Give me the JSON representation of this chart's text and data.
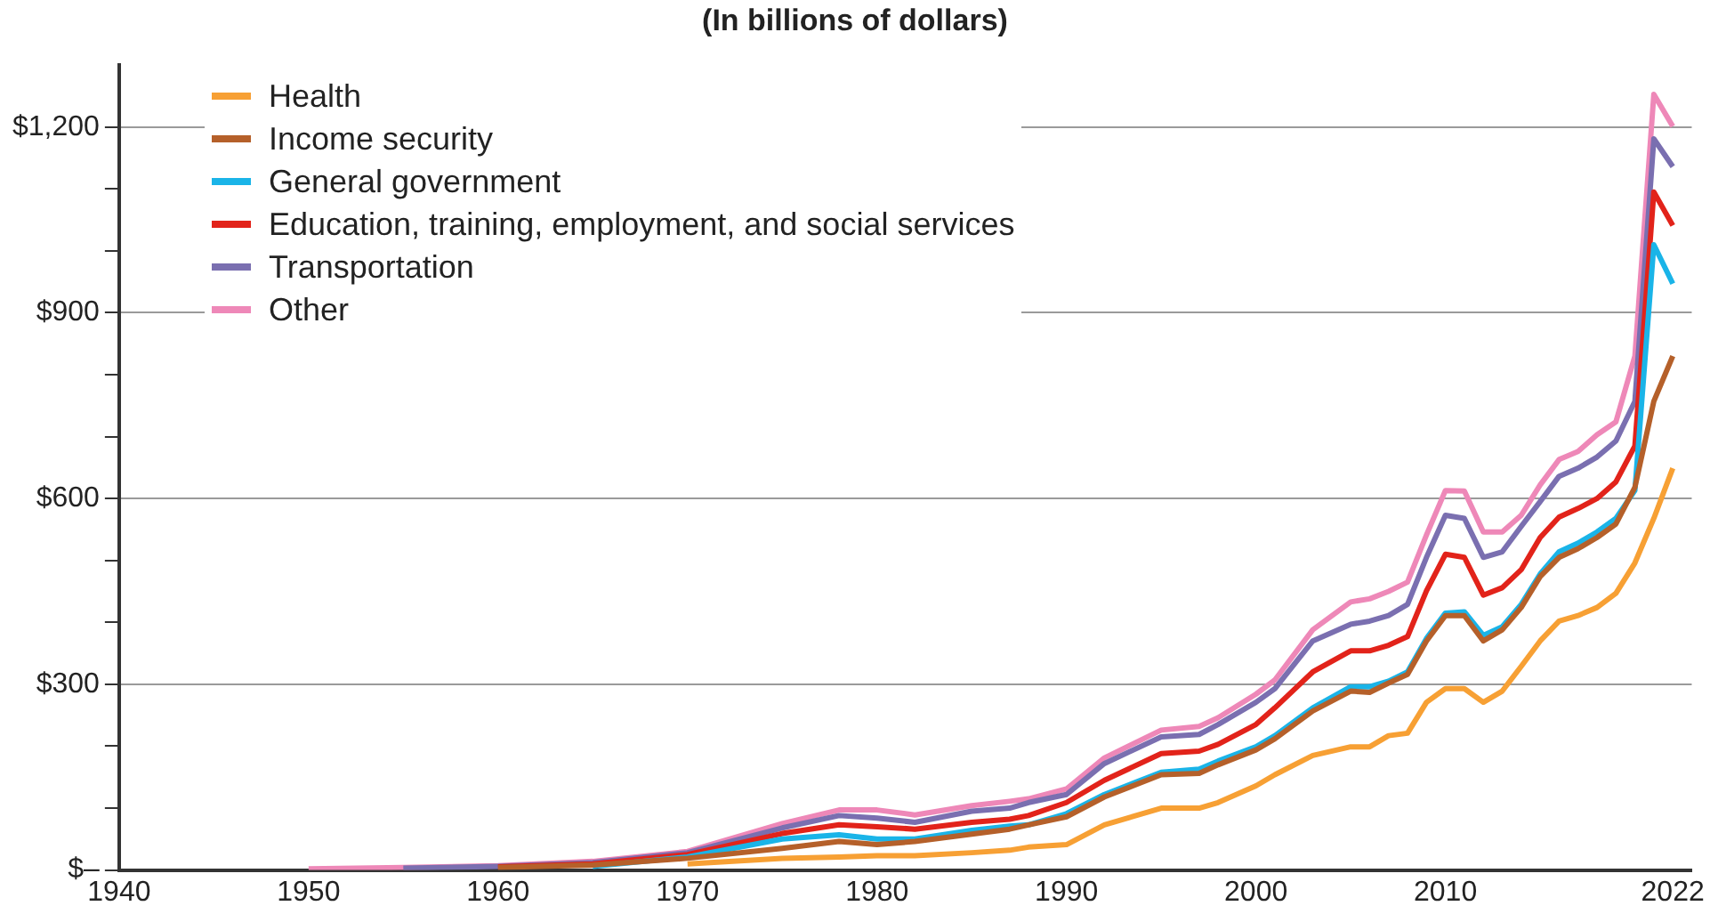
{
  "chart_data": {
    "type": "line",
    "title": "(In billions of dollars)",
    "x": [
      1950,
      1955,
      1960,
      1965,
      1970,
      1975,
      1978,
      1980,
      1982,
      1985,
      1987,
      1988,
      1990,
      1992,
      1995,
      1997,
      1998,
      2000,
      2001,
      2003,
      2005,
      2006,
      2007,
      2008,
      2009,
      2010,
      2011,
      2012,
      2013,
      2014,
      2015,
      2016,
      2017,
      2018,
      2019,
      2020,
      2021,
      2022
    ],
    "series": [
      {
        "name": "Health",
        "color": "#f7a034",
        "values": [
          null,
          null,
          null,
          null,
          10,
          19,
          21,
          23,
          23,
          28,
          32,
          37,
          41,
          73,
          100,
          100,
          109,
          136,
          154,
          185,
          199,
          199,
          217,
          221,
          271,
          293,
          293,
          271,
          289,
          329,
          370,
          402,
          411,
          424,
          447,
          496,
          568,
          649
        ]
      },
      {
        "name": "Income security",
        "color": "#b5602a",
        "values": [
          null,
          null,
          4,
          8,
          19,
          35,
          46,
          41,
          46,
          58,
          66,
          73,
          86,
          118,
          154,
          156,
          170,
          194,
          212,
          257,
          289,
          287,
          302,
          316,
          370,
          411,
          411,
          370,
          388,
          424,
          474,
          505,
          519,
          537,
          559,
          618,
          757,
          830
        ]
      },
      {
        "name": "General government",
        "color": "#1ab4e8",
        "values": [
          null,
          null,
          null,
          6,
          21,
          50,
          57,
          50,
          50,
          64,
          71,
          73,
          91,
          122,
          158,
          163,
          176,
          199,
          217,
          262,
          296,
          296,
          305,
          320,
          374,
          415,
          417,
          379,
          393,
          429,
          478,
          514,
          528,
          546,
          568,
          613,
          1010,
          947
        ]
      },
      {
        "name": "Education, training, employment, and social services",
        "color": "#e2231a",
        "values": [
          null,
          null,
          5,
          10,
          25,
          59,
          73,
          70,
          66,
          77,
          82,
          88,
          109,
          145,
          188,
          192,
          203,
          235,
          262,
          320,
          354,
          354,
          363,
          377,
          451,
          510,
          505,
          444,
          456,
          485,
          537,
          570,
          584,
          600,
          627,
          685,
          1095,
          1041
        ]
      },
      {
        "name": "Transportation",
        "color": "#7a6fb0",
        "values": [
          null,
          3,
          6,
          12,
          28,
          68,
          88,
          84,
          77,
          95,
          100,
          109,
          122,
          172,
          215,
          219,
          235,
          271,
          293,
          370,
          397,
          402,
          411,
          429,
          505,
          573,
          568,
          505,
          514,
          555,
          595,
          636,
          649,
          667,
          693,
          757,
          1181,
          1136
        ]
      },
      {
        "name": "Other",
        "color": "#ee88b8",
        "values": [
          2,
          4,
          7,
          14,
          30,
          75,
          97,
          97,
          89,
          104,
          111,
          115,
          131,
          181,
          226,
          232,
          246,
          284,
          307,
          388,
          433,
          438,
          450,
          465,
          541,
          613,
          612,
          546,
          546,
          573,
          622,
          663,
          676,
          703,
          724,
          830,
          1253,
          1201
        ]
      }
    ],
    "xlim": [
      1940,
      2023
    ],
    "xticks": [
      1940,
      1950,
      1960,
      1970,
      1980,
      1990,
      2000,
      2010,
      2022
    ],
    "ylim": [
      0,
      1300
    ],
    "yticks": [
      {
        "value": 0,
        "label": "$–"
      },
      {
        "value": 100,
        "label": null
      },
      {
        "value": 200,
        "label": null
      },
      {
        "value": 300,
        "label": "$300"
      },
      {
        "value": 400,
        "label": null
      },
      {
        "value": 500,
        "label": null
      },
      {
        "value": 600,
        "label": "$600"
      },
      {
        "value": 700,
        "label": null
      },
      {
        "value": 800,
        "label": null
      },
      {
        "value": 900,
        "label": "$900"
      },
      {
        "value": 1000,
        "label": null
      },
      {
        "value": 1100,
        "label": null
      },
      {
        "value": 1200,
        "label": "$1,200"
      }
    ],
    "grid": "y",
    "legend": "top left",
    "marker": "none",
    "line_style": "solid"
  }
}
